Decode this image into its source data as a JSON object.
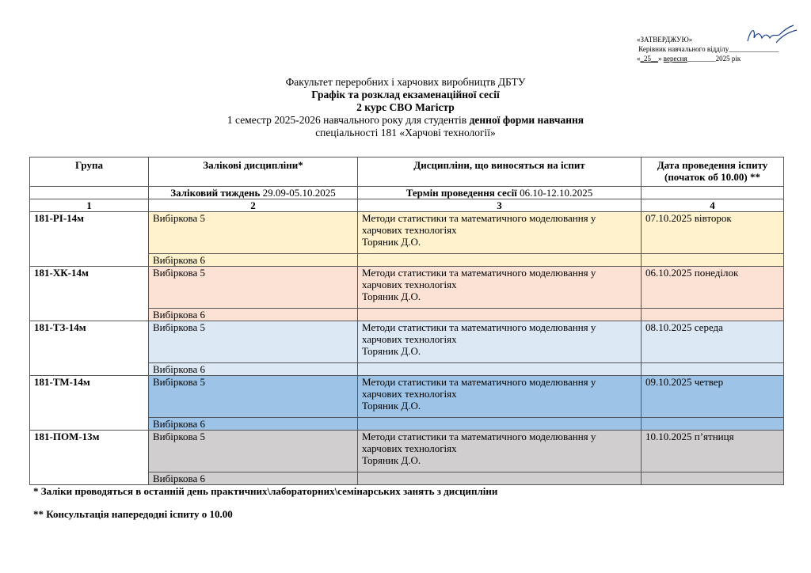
{
  "approval": {
    "title": "«ЗАТВЕРДЖУЮ»",
    "role": "Керівник навчального відділу",
    "day": "25",
    "month": "вересня",
    "year_suffix": "2025 рік"
  },
  "header": {
    "line1": "Факультет переробних і харчових виробництв ДБТУ",
    "line2": "Графік та розклад екзаменаційної сесії",
    "line3": "2 курс СВО Магістр",
    "line4_normal": "1 семестр 2025-2026 навчального року для студентів ",
    "line4_bold": "денної форми навчання",
    "line5": "спеціальності 181 «Харчові технології»"
  },
  "table": {
    "columns": [
      "Група",
      "Залікові дисципліни",
      "Дисципліни, що виносяться на іспит",
      "Дата проведення іспиту (початок об 10.00)"
    ],
    "col2_mark": "*",
    "col4_mark": "**",
    "week_label": "Заліковий тиждень",
    "week_dates": "29.09-05.10.2025",
    "session_label": "Термін проведення сесії",
    "session_dates": "06.10-12.10.2025",
    "numbers": [
      "1",
      "2",
      "3",
      "4"
    ],
    "groups": [
      {
        "group": "181-РІ-14м",
        "credit1": "Вибіркова 5",
        "credit2": "Вибіркова 6",
        "exam_line1": "Методи статистики та математичного моделювання у",
        "exam_line2": "харчових технологіях",
        "teacher": "Торяник Д.О.",
        "date": "07.10.2025 вівторок",
        "color": "#fff2cc"
      },
      {
        "group": "181-ХК-14м",
        "credit1": "Вибіркова 5",
        "credit2": "Вибіркова 6",
        "exam_line1": "Методи статистики та математичного моделювання у",
        "exam_line2": "харчових технологіях",
        "teacher": "Торяник Д.О.",
        "date": "06.10.2025 понеділок",
        "color": "#fbe2d5"
      },
      {
        "group": "181-ТЗ-14м",
        "credit1": "Вибіркова 5",
        "credit2": "Вибіркова 6",
        "exam_line1": "Методи статистики та математичного моделювання у",
        "exam_line2": "харчових технологіях",
        "teacher": "Торяник Д.О.",
        "date": "08.10.2025 середа",
        "color": "#dde8f5"
      },
      {
        "group": "181-ТМ-14м",
        "credit1": "Вибіркова 5",
        "credit2": "Вибіркова 6",
        "exam_line1": "Методи статистики та математичного моделювання у",
        "exam_line2": "харчових технологіях",
        "teacher": "Торяник Д.О.",
        "date": "09.10.2025 четвер",
        "color": "#9dc3e6"
      },
      {
        "group": "181-ПОМ-13м",
        "credit1": "Вибіркова 5",
        "credit2": "Вибіркова 6",
        "exam_line1": "Методи статистики та математичного моделювання у",
        "exam_line2": "харчових технологіях",
        "teacher": "Торяник Д.О.",
        "date": "10.10.2025 п’ятниця",
        "color": "#d0cece"
      }
    ]
  },
  "footnotes": {
    "note1": "* Заліки проводяться в останній день практичних\\лабораторних\\семінарських занять з дисципліни",
    "note2": "** Консультація  напередодні іспиту о 10.00"
  }
}
